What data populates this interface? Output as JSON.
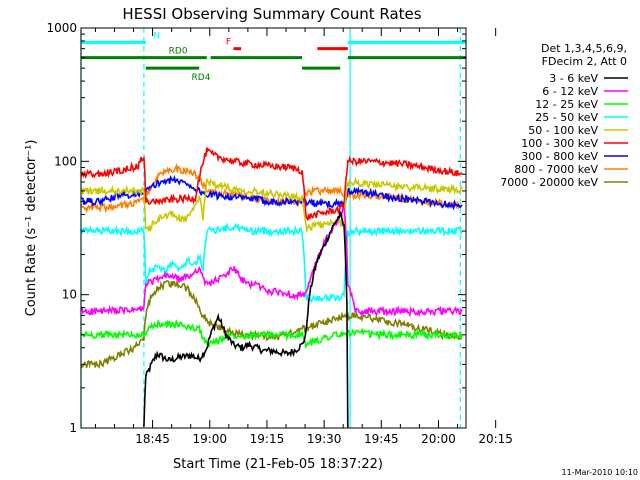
{
  "chart_data": {
    "type": "line",
    "title": "HESSI Observing Summary Count Rates",
    "xlabel": "Start Time (21-Feb-05 18:37:22)",
    "ylabel": "Count Rate (s⁻¹ detector⁻¹)",
    "yscale": "log",
    "ylim": [
      1,
      1000
    ],
    "xlim_minutes": [
      0,
      101
    ],
    "x_ticks": [
      "18:45",
      "19:00",
      "19:15",
      "19:30",
      "19:45",
      "20:00",
      "20:15"
    ],
    "y_ticks": [
      "1",
      "10",
      "100",
      "1000"
    ],
    "legend_header": [
      "Det 1,3,4,5,6,9,",
      "FDecim 2, Att 0"
    ],
    "legend_position": "right",
    "timestamp": "11-Mar-2010 10:10",
    "flags": [
      {
        "label": "N",
        "color": "#00ffff",
        "level": 780,
        "segments": [
          [
            0,
            17
          ],
          [
            70,
            101
          ]
        ]
      },
      {
        "label": "F",
        "color": "#ff0000",
        "level": 700,
        "segments": [
          [
            40,
            42
          ],
          [
            62,
            70
          ]
        ]
      },
      {
        "label": "RD0",
        "color": "#008000",
        "level": 600,
        "segments": [
          [
            0,
            33
          ],
          [
            34,
            58
          ],
          [
            70,
            101
          ]
        ]
      },
      {
        "label": "RD4",
        "color": "#008000",
        "level": 500,
        "segments": [
          [
            17,
            31
          ],
          [
            58,
            68
          ]
        ]
      }
    ],
    "vlines": [
      {
        "x": 0,
        "color": "#00ffff",
        "dashed": false
      },
      {
        "x": 16.5,
        "color": "#00ffff",
        "dashed": true
      },
      {
        "x": 70.6,
        "color": "#00ffff",
        "dashed": false
      },
      {
        "x": 99.5,
        "color": "#00ffff",
        "dashed": true
      }
    ],
    "series": [
      {
        "name": "3 - 6 keV",
        "color": "#000000",
        "x": [
          16.5,
          17,
          20,
          23,
          26,
          29,
          31,
          32,
          33,
          34,
          36,
          38,
          40,
          42,
          44,
          46,
          48,
          50,
          52,
          54,
          56,
          57,
          58,
          59,
          60,
          62,
          64,
          66,
          68,
          69,
          70
        ],
        "values": [
          1,
          2.4,
          3.6,
          3.2,
          3.4,
          3.5,
          3.3,
          3.6,
          4,
          5,
          6.8,
          5,
          4.2,
          4,
          4.2,
          4,
          3.8,
          3.8,
          3.7,
          3.6,
          3.8,
          4,
          4.2,
          5,
          10,
          18,
          24,
          32,
          40,
          32,
          1
        ]
      },
      {
        "name": "6 - 12 keV",
        "color": "#ff00ff",
        "x": [
          0,
          5,
          10,
          15,
          16.5,
          17,
          20,
          23,
          26,
          29,
          31,
          32,
          33,
          36,
          38,
          40,
          42,
          44,
          46,
          48,
          50,
          52,
          54,
          56,
          58,
          59,
          62,
          65,
          68,
          69,
          70,
          72,
          76,
          80,
          85,
          90,
          95,
          100
        ],
        "values": [
          7.5,
          7.5,
          7.6,
          7.7,
          7.8,
          12,
          13,
          14,
          13,
          14,
          16,
          13,
          12,
          13,
          14,
          16,
          13,
          12,
          12,
          11,
          10.5,
          10.5,
          10.2,
          10,
          10,
          9.8,
          18,
          28,
          38,
          45,
          12,
          7.5,
          7.5,
          7.5,
          7.5,
          7.5,
          7.5,
          7.5
        ]
      },
      {
        "name": "12 - 25 keV",
        "color": "#00ff00",
        "x": [
          0,
          10,
          16.5,
          17,
          20,
          25,
          31,
          33,
          40,
          50,
          58,
          59,
          66,
          69,
          70,
          80,
          90,
          100
        ],
        "values": [
          5,
          5,
          5,
          5.3,
          6,
          6,
          5.5,
          4.2,
          5,
          5,
          5,
          4.2,
          5,
          5,
          5.2,
          5,
          5,
          5
        ]
      },
      {
        "name": "25 - 50 keV",
        "color": "#00ffff",
        "x": [
          0,
          5,
          10,
          16.5,
          17,
          18,
          20,
          22,
          24,
          26,
          28,
          30,
          31,
          32,
          33,
          40,
          45,
          50,
          55,
          58,
          59,
          62,
          65,
          68,
          69,
          70,
          80,
          90,
          100
        ],
        "values": [
          30,
          30,
          30,
          30,
          12,
          15,
          16,
          15,
          17,
          15,
          18,
          17,
          19,
          16,
          30,
          32,
          30,
          30,
          30,
          30,
          9.5,
          9.5,
          9.5,
          9.5,
          9.8,
          30,
          30,
          30,
          30
        ]
      },
      {
        "name": "50 - 100 keV",
        "color": "#c8c800",
        "x": [
          0,
          16.5,
          17,
          18,
          21,
          24,
          27,
          30,
          31,
          32,
          33,
          35,
          40,
          45,
          50,
          55,
          58,
          59,
          62,
          65,
          68,
          69,
          70,
          75,
          80,
          85,
          90,
          95,
          100
        ],
        "values": [
          60,
          60,
          30,
          32,
          38,
          40,
          36,
          45,
          55,
          38,
          70,
          68,
          62,
          60,
          58,
          55,
          52,
          32,
          33,
          34,
          34,
          35,
          70,
          68,
          66,
          64,
          63,
          62,
          62
        ]
      },
      {
        "name": "100 - 300 keV",
        "color": "#ff0000",
        "x": [
          0,
          5,
          10,
          15,
          16.5,
          17,
          20,
          25,
          30,
          33,
          35,
          40,
          45,
          50,
          55,
          58,
          59,
          62,
          65,
          68,
          69,
          70,
          75,
          80,
          85,
          90,
          95,
          100
        ],
        "values": [
          80,
          80,
          85,
          92,
          112,
          50,
          50,
          52,
          53,
          120,
          110,
          100,
          95,
          92,
          90,
          85,
          38,
          40,
          42,
          44,
          46,
          100,
          100,
          98,
          95,
          90,
          85,
          80
        ]
      },
      {
        "name": "300 - 800 keV",
        "color": "#0000ff",
        "x": [
          0,
          5,
          10,
          15,
          16.5,
          18,
          20,
          22,
          25,
          28,
          30,
          31,
          32,
          33,
          38,
          42,
          46,
          50,
          55,
          58,
          59,
          62,
          65,
          68,
          69,
          70,
          75,
          80,
          85,
          90,
          95,
          100
        ],
        "values": [
          50,
          50,
          55,
          58,
          60,
          62,
          68,
          72,
          72,
          68,
          62,
          60,
          58,
          56,
          55,
          53,
          52,
          50,
          50,
          50,
          50,
          48,
          48,
          48,
          48,
          60,
          58,
          55,
          52,
          50,
          48,
          47
        ]
      },
      {
        "name": "800 - 7000 keV",
        "color": "#ff8000",
        "x": [
          0,
          5,
          10,
          15,
          16.5,
          18,
          20,
          22,
          25,
          28,
          30,
          33,
          38,
          42,
          46,
          50,
          55,
          58,
          59,
          62,
          65,
          68,
          70,
          75,
          80,
          85,
          90,
          95,
          100
        ],
        "values": [
          45,
          45,
          46,
          50,
          52,
          60,
          75,
          85,
          88,
          85,
          80,
          60,
          58,
          55,
          52,
          50,
          50,
          50,
          58,
          60,
          60,
          60,
          55,
          56,
          55,
          52,
          50,
          48,
          47
        ]
      },
      {
        "name": "7000 - 20000 keV",
        "color": "#808000",
        "x": [
          0,
          5,
          10,
          14,
          16.5,
          17,
          18,
          20,
          22,
          24,
          26,
          28,
          30,
          31,
          32,
          34,
          38,
          42,
          46,
          50,
          54,
          58,
          62,
          66,
          70,
          75,
          80,
          85,
          90,
          95,
          100
        ],
        "values": [
          3,
          3,
          3.5,
          4,
          4.5,
          7,
          9,
          11,
          12,
          12,
          12,
          11,
          9,
          8,
          7,
          6,
          5.5,
          5,
          5,
          4.8,
          5,
          5.5,
          6,
          6.5,
          7,
          6.8,
          6.3,
          6,
          5.5,
          5,
          4.7
        ]
      }
    ]
  }
}
